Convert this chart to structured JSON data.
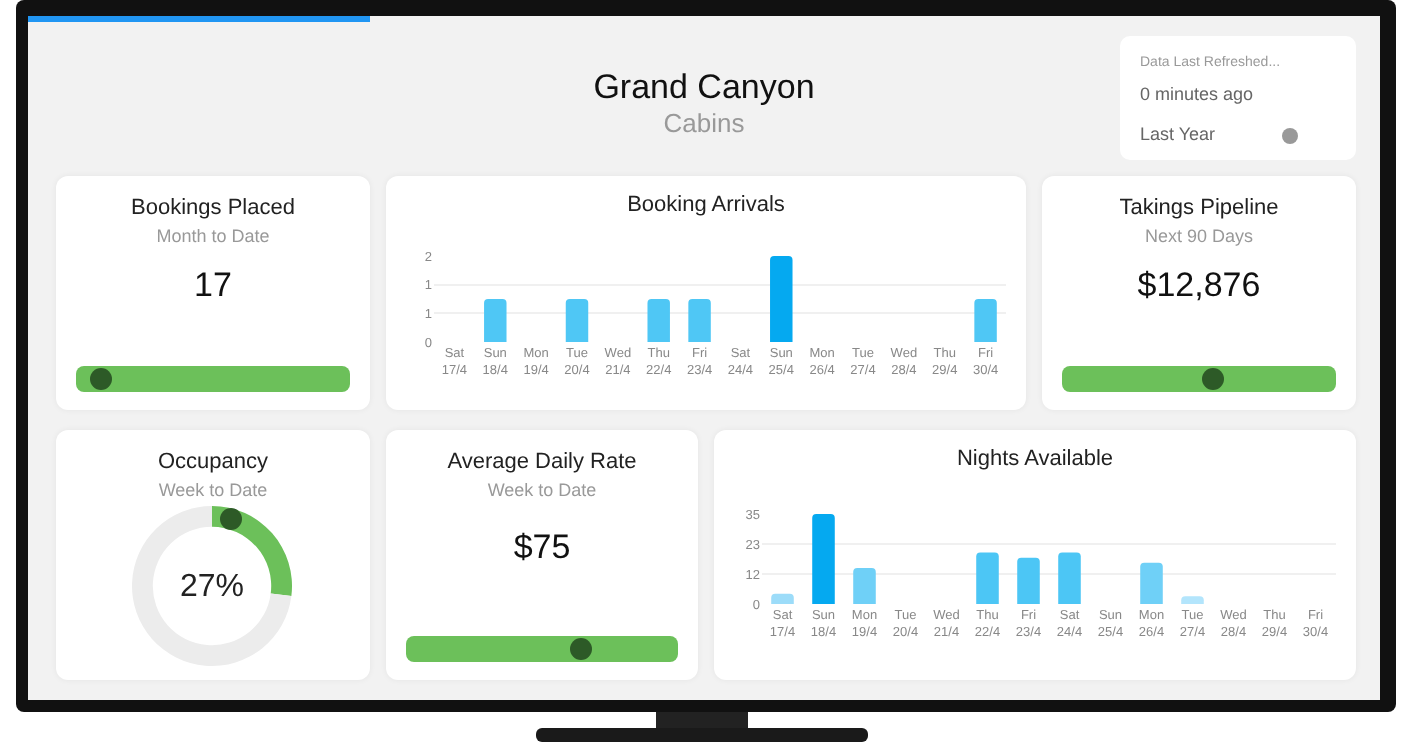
{
  "chart_data": [
    {
      "type": "other",
      "title": "Grand Canyon",
      "subtitle": "Cabins",
      "annotations": [
        "Data Last Refreshed...",
        "0 minutes ago",
        "Last Year"
      ]
    },
    {
      "type": "other",
      "title": "Bookings Placed",
      "subtitle": "Month to Date",
      "annotations": [
        "17"
      ]
    },
    {
      "type": "bar",
      "title": "Booking Arrivals",
      "categories": [
        "Sat 17/4",
        "Sun 18/4",
        "Mon 19/4",
        "Tue 20/4",
        "Wed 21/4",
        "Thu 22/4",
        "Fri 23/4",
        "Sat 24/4",
        "Sun 25/4",
        "Mon 26/4",
        "Tue 27/4",
        "Wed 28/4",
        "Thu 29/4",
        "Fri 30/4"
      ],
      "values": [
        0,
        1,
        0,
        1,
        0,
        1,
        1,
        0,
        2,
        0,
        0,
        0,
        0,
        1
      ],
      "colors": [
        "#b3e5fc",
        "#4fc7f5",
        "#b3e5fc",
        "#4fc7f5",
        "#b3e5fc",
        "#4fc7f5",
        "#4fc7f5",
        "#b3e5fc",
        "#05a9f0",
        "#b3e5fc",
        "#b3e5fc",
        "#b3e5fc",
        "#b3e5fc",
        "#4fc7f5"
      ],
      "ylim": [
        0,
        2
      ],
      "yticks": [
        0,
        {
          "value": 0.67,
          "label": "1"
        },
        {
          "value": 1.33,
          "label": "1"
        },
        2
      ],
      "grid": "y",
      "legend": false
    },
    {
      "type": "other",
      "title": "Takings Pipeline",
      "subtitle": "Next 90 Days",
      "annotations": [
        "$12,876"
      ]
    },
    {
      "type": "donut",
      "title": "Occupancy",
      "subtitle": "Week to Date",
      "categories": [
        null,
        null
      ],
      "values": [
        27,
        73
      ],
      "colors": [
        "#6cc05a",
        "#ececec"
      ],
      "annotations": [
        "27%"
      ],
      "legend": false
    },
    {
      "type": "other",
      "title": "Average Daily Rate",
      "subtitle": "Week to Date",
      "annotations": [
        "$75"
      ]
    },
    {
      "type": "bar",
      "title": "Nights Available",
      "categories": [
        "Sat 17/4",
        "Sun 18/4",
        "Mon 19/4",
        "Tue 20/4",
        "Wed 21/4",
        "Thu 22/4",
        "Fri 23/4",
        "Sat 24/4",
        "Sun 25/4",
        "Mon 26/4",
        "Tue 27/4",
        "Wed 28/4",
        "Thu 29/4",
        "Fri 30/4"
      ],
      "values": [
        4,
        35,
        14,
        0,
        0,
        20,
        18,
        20,
        0,
        16,
        3,
        0,
        0,
        0
      ],
      "colors": [
        "#9cdcf9",
        "#05a9f0",
        "#6fd0f7",
        "#c8ecfb",
        "#c8ecfb",
        "#4cc6f5",
        "#4cc6f5",
        "#4cc6f5",
        "#c8ecfb",
        "#6fd0f7",
        "#b3e5fc",
        "#c8ecfb",
        "#c8ecfb",
        "#c8ecfb"
      ],
      "ylim": [
        0,
        35
      ],
      "yticks": [
        0,
        {
          "value": 11.67,
          "label": "12"
        },
        {
          "value": 23.33,
          "label": "23"
        },
        35
      ],
      "grid": "y",
      "legend": false
    }
  ]
}
